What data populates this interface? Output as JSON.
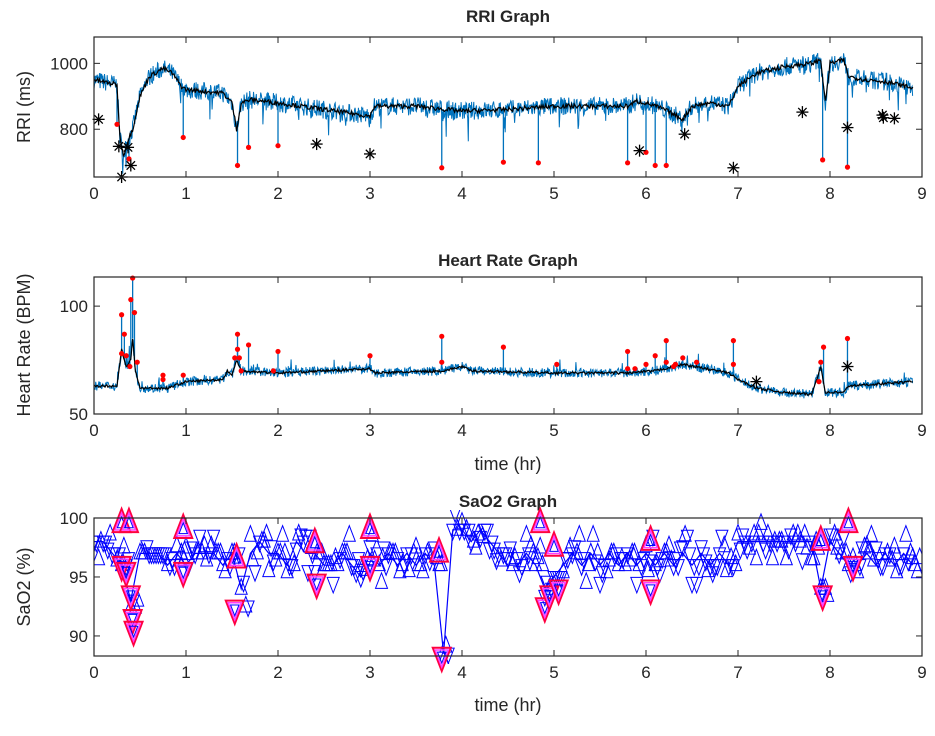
{
  "colors": {
    "raw": "#0072bd",
    "smooth": "#000000",
    "event": "#ff0000",
    "asterisk": "#000000",
    "sao2": "#0000ff",
    "sao2_event_outer": "#ff0040",
    "sao2_event_inner": "#ff40ff"
  },
  "chart_data": [
    {
      "type": "line",
      "title": "RRI Graph",
      "xlabel": "",
      "ylabel": "RRI (ms)",
      "xlim": [
        0,
        9
      ],
      "ylim": [
        655,
        1080
      ],
      "xticks": [
        0,
        1,
        2,
        3,
        4,
        5,
        6,
        7,
        8,
        9
      ],
      "yticks": [
        800,
        1000
      ],
      "grid": false,
      "series": [
        {
          "role": "smoothed",
          "x": [
            0,
            0.25,
            0.28,
            0.32,
            0.36,
            0.42,
            0.5,
            0.6,
            0.75,
            0.85,
            0.95,
            1.0,
            1.4,
            1.5,
            1.55,
            1.6,
            1.7,
            2.0,
            2.5,
            3.0,
            3.05,
            3.5,
            4.0,
            4.5,
            5.0,
            5.5,
            5.8,
            5.9,
            6.0,
            6.2,
            6.4,
            6.5,
            6.7,
            6.9,
            7.0,
            7.2,
            7.5,
            7.8,
            7.9,
            7.95,
            8.0,
            8.15,
            8.2,
            8.4,
            8.6,
            8.9
          ],
          "y": [
            950,
            935,
            780,
            720,
            760,
            800,
            900,
            960,
            985,
            970,
            930,
            920,
            910,
            880,
            800,
            880,
            890,
            880,
            860,
            840,
            870,
            870,
            855,
            860,
            870,
            870,
            870,
            885,
            880,
            860,
            830,
            870,
            880,
            870,
            930,
            970,
            990,
            1000,
            1010,
            880,
            1000,
            1010,
            960,
            950,
            945,
            925
          ]
        }
      ],
      "events": {
        "x": [
          0.25,
          0.38,
          0.97,
          1.56,
          1.68,
          2.0,
          3.78,
          4.45,
          4.83,
          5.8,
          6.0,
          6.1,
          6.22,
          7.92,
          8.19
        ],
        "y": [
          815,
          710,
          775,
          690,
          745,
          750,
          683,
          700,
          698,
          698,
          730,
          690,
          690,
          707,
          685
        ]
      },
      "asterisks": {
        "x": [
          0.05,
          0.27,
          0.3,
          0.37,
          0.4,
          2.42,
          3.0,
          5.93,
          6.42,
          6.95,
          7.7,
          8.19,
          8.57,
          8.58,
          8.7
        ],
        "y": [
          830,
          748,
          655,
          745,
          690,
          755,
          725,
          735,
          785,
          683,
          852,
          805,
          843,
          835,
          833
        ]
      }
    },
    {
      "type": "line",
      "title": "Heart Rate Graph",
      "xlabel": "time (hr)",
      "ylabel": "Heart Rate (BPM)",
      "xlim": [
        0,
        9
      ],
      "ylim": [
        50,
        113.5
      ],
      "xticks": [
        0,
        1,
        2,
        3,
        4,
        5,
        6,
        7,
        8,
        9
      ],
      "yticks": [
        50,
        100
      ],
      "grid": false,
      "series": [
        {
          "role": "smoothed",
          "x": [
            0,
            0.25,
            0.3,
            0.35,
            0.4,
            0.42,
            0.45,
            0.5,
            0.8,
            1.0,
            1.4,
            1.45,
            1.5,
            1.55,
            1.6,
            2.0,
            2.5,
            3.0,
            3.05,
            3.8,
            4.0,
            4.1,
            5.0,
            5.8,
            6.1,
            6.4,
            6.9,
            7.0,
            7.2,
            7.5,
            7.8,
            7.9,
            7.95,
            8.15,
            8.2,
            8.9
          ],
          "y": [
            63,
            63,
            80,
            72,
            75,
            85,
            70,
            62,
            62,
            65,
            66,
            70,
            68,
            75,
            70,
            69,
            70,
            71,
            69,
            70,
            72,
            70,
            69,
            69,
            70,
            73,
            69,
            66,
            62,
            60,
            59,
            72,
            60,
            60,
            63,
            65
          ]
        }
      ],
      "events": {
        "x": [
          0.3,
          0.33,
          0.3,
          0.35,
          0.39,
          0.4,
          0.42,
          0.44,
          0.47,
          0.75,
          0.75,
          0.97,
          1.53,
          1.56,
          1.56,
          1.58,
          1.6,
          1.68,
          1.95,
          2.0,
          3.0,
          3.78,
          3.78,
          4.45,
          5.03,
          5.8,
          5.8,
          5.88,
          6.0,
          6.1,
          6.22,
          6.22,
          6.3,
          6.32,
          6.4,
          6.55,
          6.95,
          6.95,
          7.88,
          7.9,
          7.93,
          8.19
        ],
        "y": [
          96,
          87,
          78,
          77,
          72,
          103,
          113,
          97,
          74,
          68,
          66,
          68,
          76,
          87,
          80,
          76,
          70,
          82,
          70,
          79,
          77,
          86,
          74,
          81,
          73,
          79,
          71,
          71,
          73,
          77,
          84,
          74,
          72,
          73,
          76,
          74,
          84,
          73,
          65,
          74,
          81,
          85
        ]
      },
      "asterisks": {
        "x": [
          7.2,
          8.19
        ],
        "y": [
          65,
          72
        ]
      }
    },
    {
      "type": "scatter",
      "title": "SaO2 Graph",
      "xlabel": "time (hr)",
      "ylabel": "SaO2 (%)",
      "xlim": [
        0,
        9
      ],
      "ylim": [
        88.3,
        100
      ],
      "xticks": [
        0,
        1,
        2,
        3,
        4,
        5,
        6,
        7,
        8,
        9
      ],
      "yticks": [
        90,
        95,
        100
      ],
      "grid": false,
      "series": [
        {
          "role": "sao2",
          "x": [
            0,
            0.1,
            0.2,
            0.3,
            0.4,
            0.5,
            0.6,
            0.7,
            0.8,
            0.9,
            1.0,
            1.1,
            1.2,
            1.3,
            1.4,
            1.5,
            1.6,
            1.7,
            1.8,
            1.9,
            2.0,
            2.1,
            2.2,
            2.3,
            2.4,
            2.5,
            2.6,
            2.7,
            2.8,
            2.9,
            3.0,
            3.1,
            3.2,
            3.3,
            3.4,
            3.5,
            3.6,
            3.7,
            3.8,
            3.9,
            4.0,
            4.1,
            4.2,
            4.3,
            4.4,
            4.5,
            4.6,
            4.7,
            4.8,
            4.9,
            5.0,
            5.1,
            5.2,
            5.3,
            5.4,
            5.5,
            5.6,
            5.7,
            5.8,
            5.9,
            6.0,
            6.1,
            6.2,
            6.3,
            6.4,
            6.5,
            6.6,
            6.7,
            6.8,
            6.9,
            7.0,
            7.1,
            7.2,
            7.3,
            7.4,
            7.5,
            7.6,
            7.7,
            7.8,
            7.9,
            8.0,
            8.1,
            8.2,
            8.3,
            8.4,
            8.5,
            8.6,
            8.7,
            8.8,
            8.9
          ],
          "y": [
            98,
            98,
            97,
            96,
            93,
            97,
            97,
            97,
            96,
            97,
            96,
            97,
            97,
            97,
            96,
            97,
            94,
            97,
            98,
            97,
            97,
            96,
            98,
            97,
            97,
            96,
            96,
            97,
            96,
            95,
            97,
            96,
            97,
            96,
            97,
            96,
            97,
            96,
            88.5,
            99,
            99,
            98,
            99,
            98,
            97,
            96,
            96,
            97,
            96,
            94,
            95,
            96,
            97,
            96,
            97,
            96,
            97,
            96,
            97,
            96,
            97,
            96,
            97,
            96,
            97,
            96,
            97,
            96,
            97,
            96,
            98,
            98,
            98,
            98,
            98,
            98,
            98,
            98,
            98,
            94,
            98,
            97,
            96,
            96,
            97,
            96,
            97,
            96,
            97,
            96
          ]
        }
      ],
      "events_down": {
        "x": [
          0.3,
          0.35,
          0.4,
          0.42,
          0.43,
          0.97,
          1.53,
          2.42,
          3.0,
          3.78,
          4.9,
          4.95,
          5.05,
          6.05,
          7.92,
          8.25
        ],
        "y": [
          96,
          95.5,
          93.5,
          91.5,
          90.5,
          95.5,
          92.3,
          94.5,
          96,
          88.3,
          92.5,
          93.5,
          94,
          94,
          93.5,
          96
        ]
      },
      "events_up": {
        "x": [
          0.3,
          0.38,
          0.97,
          1.55,
          2.4,
          3.0,
          3.75,
          4.85,
          5.0,
          6.05,
          7.9,
          8.2
        ],
        "y": [
          99.5,
          99.5,
          99,
          96.5,
          97.8,
          99,
          97,
          99.5,
          97.5,
          98,
          98,
          99.5
        ]
      }
    }
  ]
}
